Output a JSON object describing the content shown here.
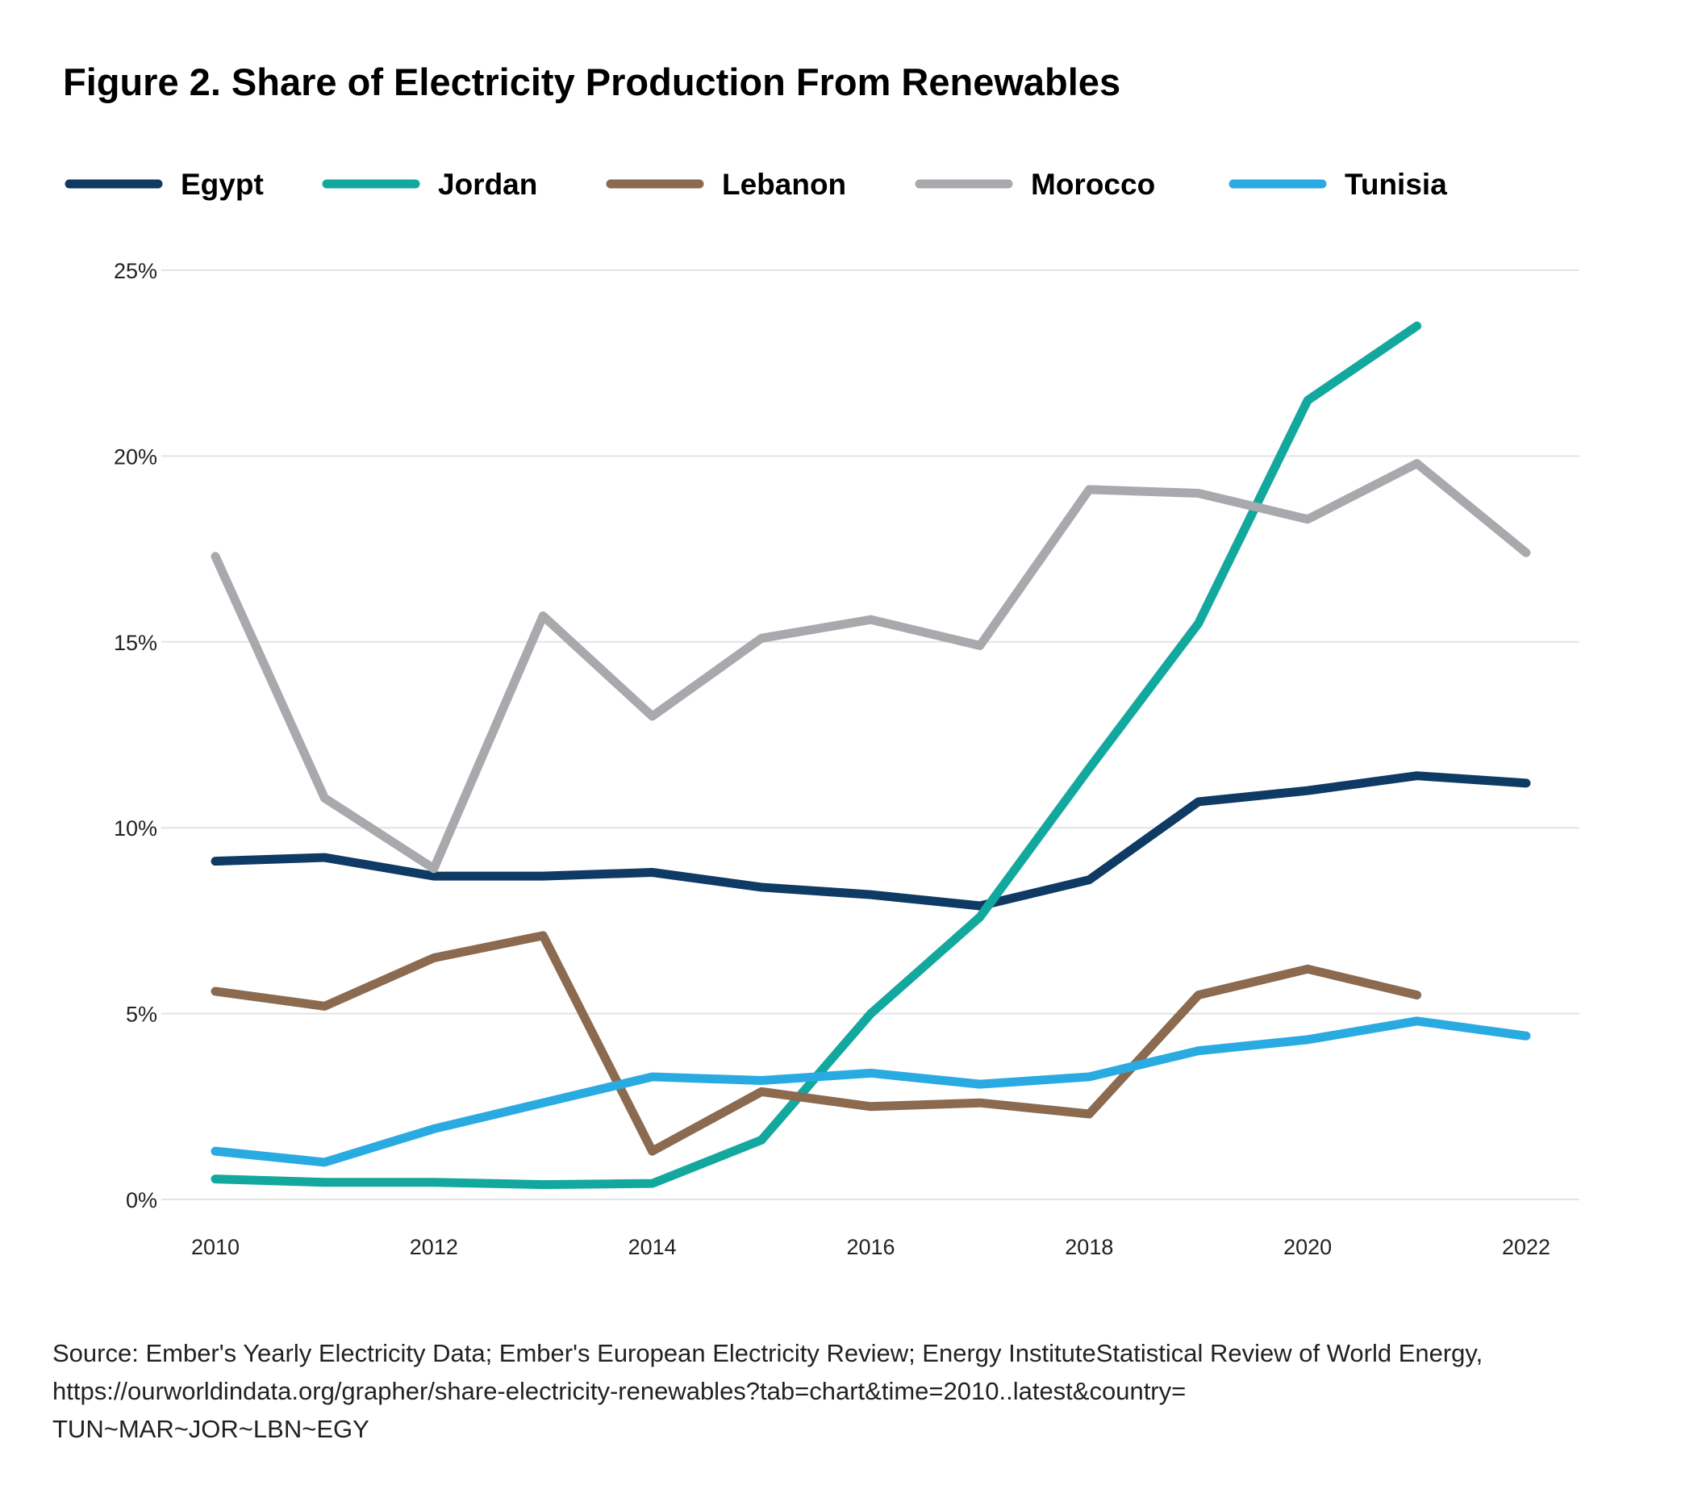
{
  "chart_data": {
    "type": "line",
    "title": "Figure 2. Share of Electricity Production From Renewables",
    "xlabel": "",
    "ylabel": "",
    "x": [
      2010,
      2011,
      2012,
      2013,
      2014,
      2015,
      2016,
      2017,
      2018,
      2019,
      2020,
      2021,
      2022
    ],
    "xticks": [
      "2010",
      "2012",
      "2014",
      "2016",
      "2018",
      "2020",
      "2022"
    ],
    "yticks": [
      "0%",
      "5%",
      "10%",
      "15%",
      "20%",
      "25%"
    ],
    "ylim": [
      0,
      25
    ],
    "grid": "horizontal",
    "legend_placement": "top",
    "series": [
      {
        "name": "Egypt",
        "color": "#0e3a63",
        "values": [
          9.1,
          9.2,
          8.7,
          8.7,
          8.8,
          8.4,
          8.2,
          7.9,
          8.6,
          10.7,
          11.0,
          11.4,
          11.2
        ]
      },
      {
        "name": "Jordan",
        "color": "#13a89e",
        "values": [
          0.55,
          0.46,
          0.46,
          0.4,
          0.43,
          1.6,
          5.0,
          7.6,
          11.6,
          15.5,
          21.5,
          23.5,
          null
        ]
      },
      {
        "name": "Lebanon",
        "color": "#8b6a4f",
        "values": [
          5.6,
          5.2,
          6.5,
          7.1,
          1.3,
          2.9,
          2.5,
          2.6,
          2.3,
          5.5,
          6.2,
          5.5,
          null
        ]
      },
      {
        "name": "Morocco",
        "color": "#a7a9ac",
        "values": [
          17.3,
          10.8,
          8.9,
          15.7,
          13.0,
          15.1,
          15.6,
          14.9,
          19.1,
          19.0,
          18.3,
          19.8,
          17.4
        ]
      },
      {
        "name": "Tunisia",
        "color": "#29abe2",
        "values": [
          1.3,
          1.0,
          1.9,
          2.6,
          3.3,
          3.2,
          3.4,
          3.1,
          3.3,
          4.0,
          4.3,
          4.8,
          4.4
        ]
      }
    ]
  },
  "source_lines": [
    "Source: Ember's Yearly Electricity Data; Ember's European Electricity Review; Energy InstituteStatistical Review of World Energy,",
    "https://ourworldindata.org/grapher/share-electricity-renewables?tab=chart&time=2010..latest&country=",
    "TUN~MAR~JOR~LBN~EGY"
  ]
}
